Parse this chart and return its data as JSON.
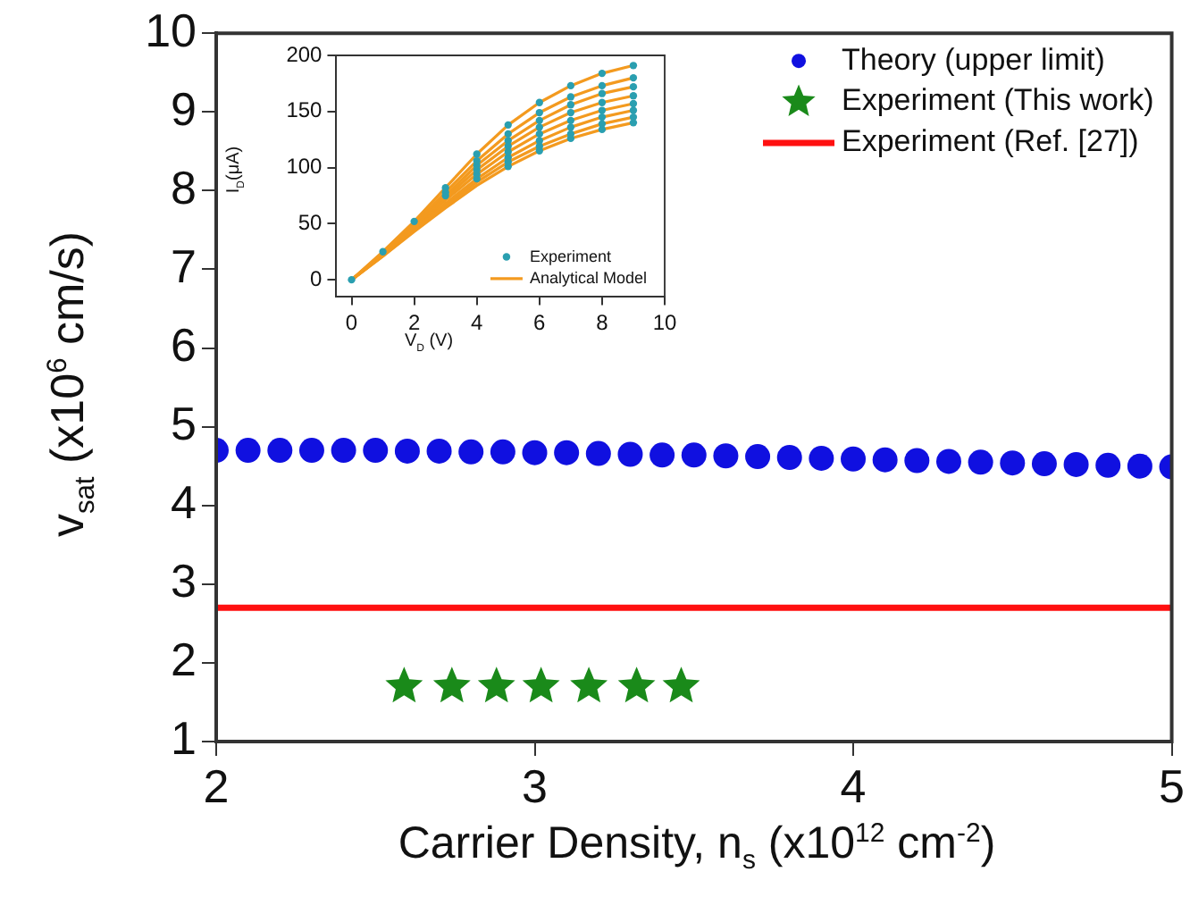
{
  "chart_data": [
    {
      "type": "scatter",
      "xlabel": "Carrier Density, n$_{s}$ (x10$^{12}$ cm$^{-2}$)",
      "ylabel": "v$_{sat}$ (x10$^{6}$ cm/s)",
      "xlim": [
        2,
        5
      ],
      "ylim": [
        1,
        10
      ],
      "xticks": [
        2,
        3,
        4,
        5
      ],
      "yticks": [
        1,
        2,
        3,
        4,
        5,
        6,
        7,
        8,
        9,
        10
      ],
      "legend": "top right",
      "series": [
        {
          "name": "Theory (upper limit)",
          "color": "#1010e0",
          "marker": "circle",
          "x": [
            2.0,
            2.1,
            2.2,
            2.3,
            2.4,
            2.5,
            2.6,
            2.7,
            2.8,
            2.9,
            3.0,
            3.1,
            3.2,
            3.3,
            3.4,
            3.5,
            3.6,
            3.7,
            3.8,
            3.9,
            4.0,
            4.1,
            4.2,
            4.3,
            4.4,
            4.5,
            4.6,
            4.7,
            4.8,
            4.9,
            5.0
          ],
          "values": [
            4.7,
            4.7,
            4.7,
            4.7,
            4.7,
            4.7,
            4.69,
            4.69,
            4.68,
            4.68,
            4.67,
            4.67,
            4.66,
            4.65,
            4.64,
            4.64,
            4.63,
            4.62,
            4.61,
            4.6,
            4.59,
            4.58,
            4.57,
            4.56,
            4.55,
            4.54,
            4.53,
            4.52,
            4.51,
            4.5,
            4.49
          ]
        },
        {
          "name": "Experiment (This work)",
          "color": "#1a8a1a",
          "marker": "star",
          "x": [
            2.59,
            2.74,
            2.88,
            3.02,
            3.17,
            3.32,
            3.46
          ],
          "values": [
            1.7,
            1.7,
            1.7,
            1.7,
            1.7,
            1.7,
            1.7
          ]
        },
        {
          "type": "line",
          "name": "Experiment (Ref. [27])",
          "color": "#ff1010",
          "x": [
            2,
            5
          ],
          "values": [
            2.7,
            2.7
          ]
        }
      ]
    },
    {
      "type": "line",
      "xlabel": "V$_{D}$ (V)",
      "ylabel": "I$_{D}$(μA)",
      "xlim": [
        -0.5,
        10
      ],
      "ylim": [
        -15,
        200
      ],
      "xticks": [
        0,
        2,
        4,
        6,
        8,
        10
      ],
      "yticks": [
        0,
        50,
        100,
        150,
        200
      ],
      "legend": "bottom right",
      "series": [
        {
          "type": "scatter",
          "name": "Experiment",
          "color": "#2a9fb0",
          "marker": "circle",
          "x": [
            0,
            1,
            2,
            3,
            4,
            5,
            6,
            7,
            8,
            9
          ],
          "values": [
            0,
            25,
            52,
            82,
            112,
            138,
            158,
            173,
            184,
            191
          ]
        },
        {
          "type": "scatter",
          "color": "#2a9fb0",
          "marker": "circle",
          "x": [
            3,
            4,
            5,
            6,
            7,
            8,
            9
          ],
          "values": [
            78,
            106,
            130,
            149,
            163,
            173,
            180
          ]
        },
        {
          "type": "scatter",
          "color": "#2a9fb0",
          "marker": "circle",
          "x": [
            3,
            4,
            5,
            6,
            7,
            8,
            9
          ],
          "values": [
            75,
            102,
            124,
            142,
            156,
            166,
            172
          ]
        },
        {
          "type": "scatter",
          "color": "#2a9fb0",
          "marker": "circle",
          "x": [
            4,
            5,
            6,
            7,
            8,
            9
          ],
          "values": [
            98,
            119,
            136,
            149,
            158,
            164
          ]
        },
        {
          "type": "scatter",
          "color": "#2a9fb0",
          "marker": "circle",
          "x": [
            4,
            5,
            6,
            7,
            8,
            9
          ],
          "values": [
            94,
            114,
            130,
            142,
            151,
            157
          ]
        },
        {
          "type": "scatter",
          "color": "#2a9fb0",
          "marker": "circle",
          "x": [
            4,
            5,
            6,
            7,
            8,
            9
          ],
          "values": [
            90,
            109,
            124,
            136,
            145,
            151
          ]
        },
        {
          "type": "scatter",
          "color": "#2a9fb0",
          "marker": "circle",
          "x": [
            5,
            6,
            7,
            8,
            9
          ],
          "values": [
            105,
            119,
            130,
            139,
            145
          ]
        },
        {
          "type": "scatter",
          "color": "#2a9fb0",
          "marker": "circle",
          "x": [
            5,
            6,
            7,
            8,
            9
          ],
          "values": [
            101,
            115,
            126,
            134,
            140
          ]
        },
        {
          "name": "Analytical Model",
          "color": "#f39a1f",
          "x": [
            0,
            1,
            2,
            3,
            4,
            5,
            6,
            7,
            8,
            9
          ],
          "values": [
            0,
            25,
            52,
            82,
            112,
            138,
            158,
            173,
            184,
            191
          ]
        },
        {
          "color": "#f39a1f",
          "x": [
            0,
            1,
            2,
            3,
            4,
            5,
            6,
            7,
            8,
            9
          ],
          "values": [
            0,
            24,
            50,
            78,
            106,
            130,
            149,
            163,
            173,
            180
          ]
        },
        {
          "color": "#f39a1f",
          "x": [
            0,
            1,
            2,
            3,
            4,
            5,
            6,
            7,
            8,
            9
          ],
          "values": [
            0,
            23,
            48,
            75,
            102,
            124,
            142,
            156,
            166,
            172
          ]
        },
        {
          "color": "#f39a1f",
          "x": [
            0,
            1,
            2,
            3,
            4,
            5,
            6,
            7,
            8,
            9
          ],
          "values": [
            0,
            23,
            47,
            73,
            98,
            119,
            136,
            149,
            158,
            164
          ]
        },
        {
          "color": "#f39a1f",
          "x": [
            0,
            1,
            2,
            3,
            4,
            5,
            6,
            7,
            8,
            9
          ],
          "values": [
            0,
            22,
            46,
            71,
            94,
            114,
            130,
            142,
            151,
            157
          ]
        },
        {
          "color": "#f39a1f",
          "x": [
            0,
            1,
            2,
            3,
            4,
            5,
            6,
            7,
            8,
            9
          ],
          "values": [
            0,
            22,
            45,
            68,
            90,
            109,
            124,
            136,
            145,
            151
          ]
        },
        {
          "color": "#f39a1f",
          "x": [
            0,
            1,
            2,
            3,
            4,
            5,
            6,
            7,
            8,
            9
          ],
          "values": [
            0,
            21,
            44,
            66,
            87,
            105,
            119,
            130,
            139,
            145
          ]
        },
        {
          "color": "#f39a1f",
          "x": [
            0,
            1,
            2,
            3,
            4,
            5,
            6,
            7,
            8,
            9
          ],
          "values": [
            0,
            21,
            43,
            64,
            84,
            101,
            115,
            126,
            134,
            140
          ]
        }
      ]
    }
  ]
}
